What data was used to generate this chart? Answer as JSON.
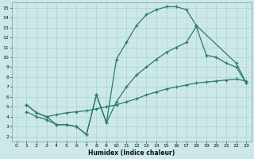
{
  "xlabel": "Humidex (Indice chaleur)",
  "bg_color": "#cce8e8",
  "line_color": "#2a7a70",
  "marker": "+",
  "xlim": [
    -0.5,
    23.5
  ],
  "ylim": [
    1.5,
    15.5
  ],
  "xticks": [
    0,
    1,
    2,
    3,
    4,
    5,
    6,
    7,
    8,
    9,
    10,
    11,
    12,
    13,
    14,
    15,
    16,
    17,
    18,
    19,
    20,
    21,
    22,
    23
  ],
  "yticks": [
    2,
    3,
    4,
    5,
    6,
    7,
    8,
    9,
    10,
    11,
    12,
    13,
    14,
    15
  ],
  "curve1_x": [
    1,
    2,
    3,
    4,
    5,
    6,
    7,
    8,
    9,
    10,
    11,
    12,
    13,
    14,
    15,
    16,
    17,
    18,
    22,
    23
  ],
  "curve1_y": [
    5.2,
    4.4,
    4.0,
    3.2,
    3.2,
    3.0,
    2.2,
    6.2,
    3.4,
    9.8,
    11.5,
    13.2,
    14.3,
    14.8,
    15.1,
    15.1,
    14.8,
    13.2,
    9.4,
    7.4
  ],
  "curve2_x": [
    1,
    2,
    3,
    4,
    5,
    6,
    7,
    8,
    9,
    10,
    11,
    12,
    13,
    14,
    15,
    16,
    17,
    18,
    19,
    20,
    21,
    22,
    23
  ],
  "curve2_y": [
    4.5,
    4.0,
    3.7,
    3.2,
    3.2,
    3.0,
    2.2,
    6.2,
    3.4,
    5.5,
    7.0,
    8.2,
    9.0,
    9.8,
    10.5,
    11.0,
    11.5,
    13.1,
    10.2,
    10.0,
    9.4,
    9.0,
    7.4
  ],
  "curve3_x": [
    1,
    2,
    3,
    4,
    5,
    6,
    7,
    8,
    9,
    10,
    11,
    12,
    13,
    14,
    15,
    16,
    17,
    18,
    19,
    20,
    21,
    22,
    23
  ],
  "curve3_y": [
    5.2,
    4.4,
    4.0,
    4.2,
    4.4,
    4.5,
    4.6,
    4.8,
    5.0,
    5.2,
    5.5,
    5.8,
    6.2,
    6.5,
    6.8,
    7.0,
    7.2,
    7.4,
    7.5,
    7.6,
    7.7,
    7.8,
    7.6
  ]
}
